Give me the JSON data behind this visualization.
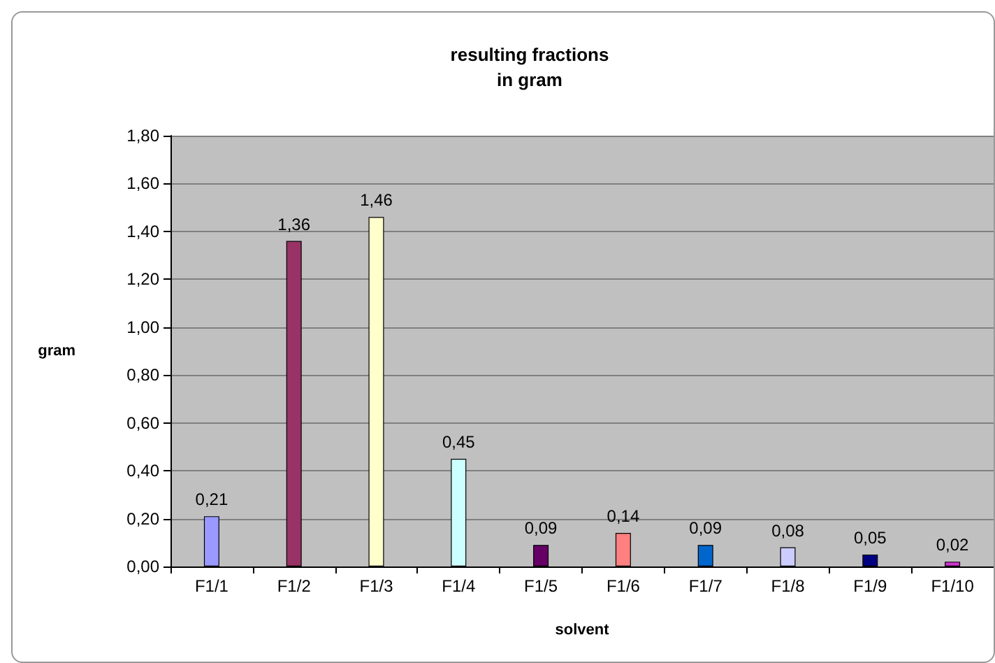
{
  "chart_data": {
    "type": "bar",
    "title": "resulting fractions\nin gram",
    "xlabel": "solvent",
    "ylabel": "gram",
    "categories": [
      "F1/1",
      "F1/2",
      "F1/3",
      "F1/4",
      "F1/5",
      "F1/6",
      "F1/7",
      "F1/8",
      "F1/9",
      "F1/10"
    ],
    "values": [
      0.21,
      1.36,
      1.46,
      0.45,
      0.09,
      0.14,
      0.09,
      0.08,
      0.05,
      0.02
    ],
    "value_labels": [
      "0,21",
      "1,36",
      "1,46",
      "0,45",
      "0,09",
      "0,14",
      "0,09",
      "0,08",
      "0,05",
      "0,02"
    ],
    "colors": [
      "#9999ff",
      "#993366",
      "#ffffcc",
      "#ccffff",
      "#660066",
      "#ff8080",
      "#0066cc",
      "#ccccff",
      "#000080",
      "#cc33cc"
    ],
    "ylim": [
      0,
      1.8
    ],
    "yticks": [
      {
        "value": 0,
        "label": "0,00"
      },
      {
        "value": 0.2,
        "label": "0,20"
      },
      {
        "value": 0.4,
        "label": "0,40"
      },
      {
        "value": 0.6,
        "label": "0,60"
      },
      {
        "value": 0.8,
        "label": "0,80"
      },
      {
        "value": 1,
        "label": "1,00"
      },
      {
        "value": 1.2,
        "label": "1,20"
      },
      {
        "value": 1.4,
        "label": "1,40"
      },
      {
        "value": 1.6,
        "label": "1,60"
      },
      {
        "value": 1.8,
        "label": "1,80"
      }
    ],
    "grid": "y"
  }
}
